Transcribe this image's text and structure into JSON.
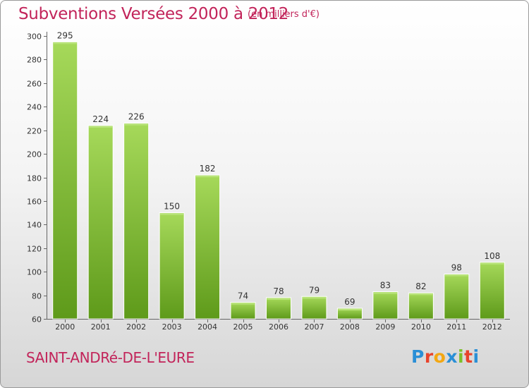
{
  "header": {
    "title": "Subventions Versées 2000 à 2012",
    "subtitle": "(en milliers d'€)"
  },
  "footer": {
    "commune": "SAINT-ANDRé-DE-L'EURE",
    "logo_letters": [
      {
        "char": "P",
        "color": "#2a8fd6"
      },
      {
        "char": "r",
        "color": "#e8432b"
      },
      {
        "char": "o",
        "color": "#f3a712"
      },
      {
        "char": "x",
        "color": "#2a8fd6"
      },
      {
        "char": "i",
        "color": "#7cbf2a"
      },
      {
        "char": "t",
        "color": "#e8432b"
      },
      {
        "char": "i",
        "color": "#2a8fd6"
      }
    ]
  },
  "chart_data": {
    "type": "bar",
    "title": "Subventions Versées 2000 à 2012",
    "subtitle": "(en milliers d'€)",
    "categories": [
      "2000",
      "2001",
      "2002",
      "2003",
      "2004",
      "2005",
      "2006",
      "2007",
      "2008",
      "2009",
      "2010",
      "2011",
      "2012"
    ],
    "values": [
      295,
      224,
      226,
      150,
      182,
      74,
      78,
      79,
      69,
      83,
      82,
      98,
      108
    ],
    "ylim": [
      60,
      300
    ],
    "yticks": [
      60,
      80,
      100,
      120,
      140,
      160,
      180,
      200,
      220,
      240,
      260,
      280,
      300
    ],
    "xlabel": "",
    "ylabel": "",
    "grid": false,
    "legend": "none",
    "bar_color": "#8cc63f",
    "bar_color_dark": "#5e9a1a"
  }
}
